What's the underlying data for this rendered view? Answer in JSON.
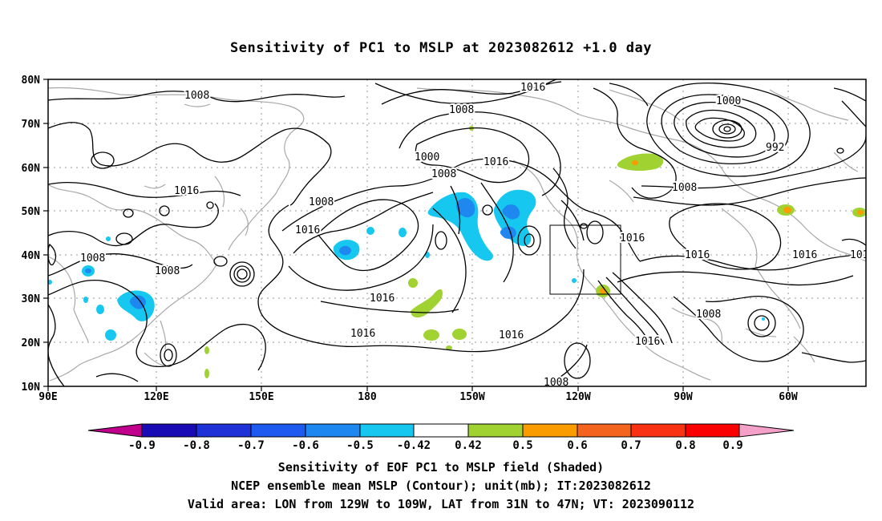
{
  "title": "Sensitivity of PC1 to MSLP at 2023082612 +1.0 day",
  "map": {
    "lat_labels": [
      "80N",
      "70N",
      "60N",
      "50N",
      "40N",
      "30N",
      "20N",
      "10N"
    ],
    "lon_labels": [
      "90E",
      "120E",
      "150E",
      "180",
      "150W",
      "120W",
      "90W",
      "60W"
    ],
    "contour_labels": [
      "1008",
      "1016",
      "1008",
      "1016",
      "1000",
      "1008",
      "992",
      "1008",
      "1016",
      "1016",
      "1008",
      "1008",
      "1016",
      "1016",
      "1016",
      "1016",
      "1016",
      "1008",
      "1016",
      "1008",
      "1016",
      "1016",
      "1008",
      "1016",
      "1008",
      "1000"
    ],
    "contour_color": "#000000",
    "coastline_color": "#a8a8a8",
    "grid_color": "#9a9a9a",
    "box_color": "#000000"
  },
  "colorbar": {
    "colors": [
      "#c0008c",
      "#1a0cb4",
      "#1e32d8",
      "#1e5af0",
      "#1e88f0",
      "#16c8f0",
      "#ffffff",
      "#a0d232",
      "#fa9b00",
      "#f5641e",
      "#fa3214",
      "#fa0000",
      "#f5a0c8"
    ],
    "labels": [
      "-0.9",
      "-0.8",
      "-0.7",
      "-0.6",
      "-0.5",
      "-0.42",
      "0.42",
      "0.5",
      "0.6",
      "0.7",
      "0.8",
      "0.9"
    ]
  },
  "captions": [
    "Sensitivity of EOF PC1 to MSLP field (Shaded)",
    "NCEP ensemble mean MSLP (Contour); unit(mb); IT:2023082612",
    "Valid area: LON from 129W to 109W, LAT from 31N to 47N; VT: 2023090112"
  ]
}
